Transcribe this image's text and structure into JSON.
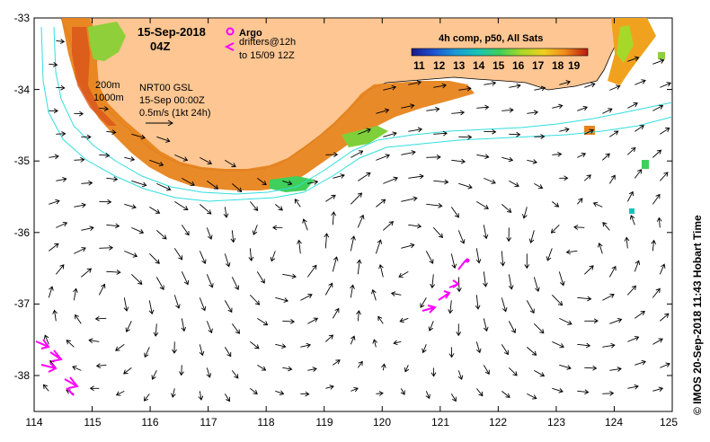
{
  "title": {
    "date": "15-Sep-2018",
    "hour": "04Z"
  },
  "legend": {
    "argo_label": "Argo",
    "drifters_line1": "drifters@12h",
    "drifters_line2": "to 15/09 12Z",
    "argo_color": "#ff00ff"
  },
  "depth_labels": {
    "shallow": "200m",
    "deep": "1000m"
  },
  "info": {
    "line1": "NRT00 GSL",
    "line2": "15-Sep 00:00Z",
    "line3": "0.5m/s (1kt 24h)"
  },
  "colorbar": {
    "title": "4h comp, p50, All Sats",
    "ticks": [
      "11",
      "12",
      "13",
      "14",
      "15",
      "16",
      "17",
      "18",
      "19"
    ],
    "colors": [
      "#1a1a8c",
      "#1f4fd0",
      "#1c9ad6",
      "#17c2b8",
      "#3fcf5a",
      "#a6d82a",
      "#f0cf1e",
      "#f08a1a",
      "#d83a14"
    ]
  },
  "axes": {
    "x_ticks": [
      "114",
      "115",
      "116",
      "117",
      "118",
      "119",
      "120",
      "121",
      "122",
      "123",
      "124",
      "125"
    ],
    "y_ticks": [
      "-33",
      "-34",
      "-35",
      "-36",
      "-37",
      "-38"
    ],
    "lon_range": [
      114,
      125
    ],
    "lat_range": [
      -38.5,
      -33
    ]
  },
  "credit": "© IMOS 20-Sep-2018 11:43 Hobart Time",
  "colors": {
    "land": "#fdc692",
    "isobath": "#33dddd",
    "vector": "#000000",
    "drifter": "#ff00ff"
  }
}
